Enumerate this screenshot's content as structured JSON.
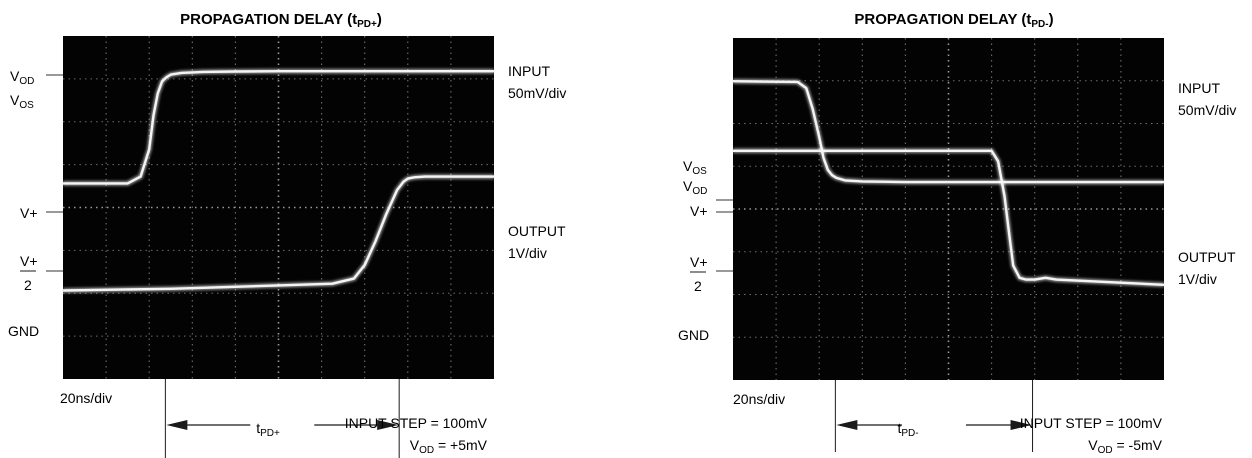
{
  "chart_data": [
    {
      "type": "line",
      "title_main": "PROPAGATION DELAY (t",
      "title_sub": "PD+",
      "title_close": ")",
      "x_unit": "ns",
      "xlim": [
        0,
        200
      ],
      "divisions": {
        "x": 10,
        "y": 8
      },
      "grid": true,
      "time_scale": "20ns/div",
      "left_labels": {
        "vod": {
          "main": "V",
          "sub": "OD"
        },
        "vos": {
          "main": "V",
          "sub": "OS"
        },
        "vplus": "V+",
        "half_num": "V+",
        "half_den": "2",
        "gnd": "GND"
      },
      "right_labels": {
        "input_name": "INPUT",
        "input_scale": "50mV/div",
        "output_name": "OUTPUT",
        "output_scale": "1V/div"
      },
      "delay_label": {
        "main": "t",
        "sub": "PD+"
      },
      "delay_ns": [
        47.5,
        156
      ],
      "step_line": "INPUT STEP = 100mV",
      "vod_line": {
        "main": "V",
        "sub": "OD",
        "rest": " = +5mV"
      },
      "series": [
        {
          "role": "input",
          "x": [
            0,
            30,
            36,
            40,
            42,
            44,
            46,
            48,
            50,
            55,
            65,
            80,
            100,
            200
          ],
          "y": [
            -3.2,
            -3.2,
            -3.0,
            -2.2,
            -1.2,
            -0.55,
            -0.2,
            -0.08,
            0.0,
            0.05,
            0.08,
            0.09,
            0.1,
            0.1
          ]
        },
        {
          "role": "output",
          "x": [
            0,
            50,
            100,
            125,
            135,
            140,
            145,
            150,
            155,
            158,
            160,
            163,
            168,
            175,
            200
          ],
          "y": [
            -6.35,
            -6.3,
            -6.2,
            -6.15,
            -6.0,
            -5.6,
            -4.9,
            -4.1,
            -3.4,
            -3.15,
            -3.06,
            -3.02,
            -3.0,
            -3.0,
            -3.0
          ]
        }
      ]
    },
    {
      "type": "line",
      "title_main": "PROPAGATION DELAY (t",
      "title_sub": "PD-",
      "title_close": ")",
      "x_unit": "ns",
      "xlim": [
        0,
        200
      ],
      "divisions": {
        "x": 10,
        "y": 8
      },
      "grid": true,
      "time_scale": "20ns/div",
      "left_labels": {
        "vos": {
          "main": "V",
          "sub": "OS"
        },
        "vod": {
          "main": "V",
          "sub": "OD"
        },
        "vplus": "V+",
        "half_num": "V+",
        "half_den": "2",
        "gnd": "GND"
      },
      "right_labels": {
        "input_name": "INPUT",
        "input_scale": "50mV/div",
        "output_name": "OUTPUT",
        "output_scale": "1V/div"
      },
      "delay_label": {
        "main": "t",
        "sub": "PD-"
      },
      "delay_ns": [
        47.5,
        139
      ],
      "step_line": "INPUT STEP = 100mV",
      "vod_line": {
        "main": "V",
        "sub": "OD",
        "rest": " = -5mV"
      },
      "series": [
        {
          "role": "input",
          "x": [
            0,
            30,
            34,
            37,
            40,
            42,
            44,
            46,
            48,
            52,
            60,
            80,
            200
          ],
          "y": [
            -1.0,
            -1.02,
            -1.2,
            -1.8,
            -2.6,
            -3.2,
            -3.55,
            -3.7,
            -3.78,
            -3.85,
            -3.88,
            -3.9,
            -3.9
          ]
        },
        {
          "role": "output",
          "x": [
            0,
            100,
            115,
            120,
            123,
            126,
            128,
            130,
            133,
            136,
            140,
            145,
            150,
            200
          ],
          "y": [
            -3.0,
            -3.0,
            -3.0,
            -3.0,
            -3.3,
            -4.3,
            -5.3,
            -6.3,
            -6.65,
            -6.7,
            -6.7,
            -6.65,
            -6.7,
            -6.85
          ]
        }
      ]
    }
  ]
}
